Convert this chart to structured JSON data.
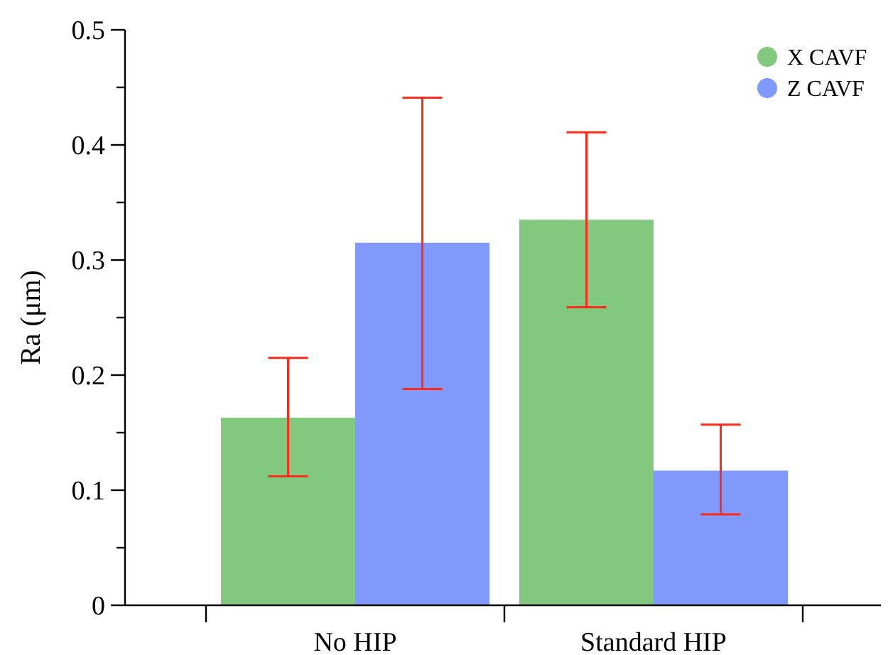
{
  "chart_data": {
    "type": "bar",
    "ylabel": "Ra (μm)",
    "categories": [
      "No HIP",
      "Standard HIP"
    ],
    "series": [
      {
        "name": "X CAVF",
        "color": "#82c87f",
        "values": [
          0.163,
          0.335
        ],
        "errors": [
          [
            0.112,
            0.215
          ],
          [
            0.259,
            0.411
          ]
        ]
      },
      {
        "name": "Z CAVF",
        "color": "#8099fb",
        "values": [
          0.315,
          0.117
        ],
        "errors": [
          [
            0.188,
            0.441
          ],
          [
            0.079,
            0.157
          ]
        ]
      }
    ],
    "ylim": [
      0,
      0.5
    ],
    "yticks": [
      0,
      {
        "value": 0.05,
        "label": null
      },
      0.1,
      {
        "value": 0.15,
        "label": null
      },
      0.2,
      {
        "value": 0.25,
        "label": null
      },
      0.3,
      {
        "value": 0.35,
        "label": null
      },
      0.4,
      {
        "value": 0.45,
        "label": null
      },
      0.5
    ],
    "grid": false,
    "legend": "top right"
  }
}
